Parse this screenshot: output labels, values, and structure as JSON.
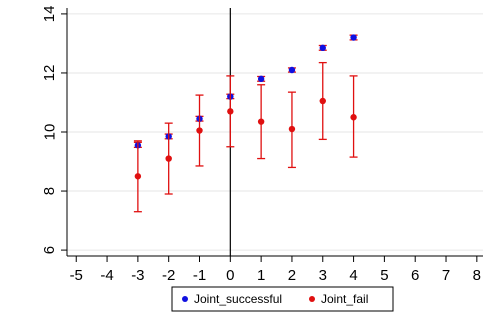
{
  "chart_data": {
    "type": "scatter",
    "title": "",
    "xlabel": "",
    "ylabel": "",
    "xlim": [
      -5.3,
      8.2
    ],
    "ylim": [
      5.8,
      14.2
    ],
    "xticks": [
      -5,
      -4,
      -3,
      -2,
      -1,
      0,
      1,
      2,
      3,
      4,
      5,
      6,
      7,
      8
    ],
    "yticks": [
      6,
      8,
      10,
      12,
      14
    ],
    "grid": "horizontal",
    "vline_x": 0,
    "legend_position": "bottom",
    "series": [
      {
        "name": "Joint_successful",
        "color": "#1010e0",
        "errorbar_color": "#e01010",
        "points": [
          {
            "x": -3,
            "y": 9.55,
            "lo": 9.48,
            "hi": 9.65
          },
          {
            "x": -2,
            "y": 9.85,
            "lo": 9.77,
            "hi": 9.93
          },
          {
            "x": -1,
            "y": 10.45,
            "lo": 10.37,
            "hi": 10.53
          },
          {
            "x": 0,
            "y": 11.2,
            "lo": 11.13,
            "hi": 11.28
          },
          {
            "x": 1,
            "y": 11.8,
            "lo": 11.72,
            "hi": 11.88
          },
          {
            "x": 2,
            "y": 12.1,
            "lo": 12.03,
            "hi": 12.17
          },
          {
            "x": 3,
            "y": 12.85,
            "lo": 12.77,
            "hi": 12.93
          },
          {
            "x": 4,
            "y": 13.2,
            "lo": 13.12,
            "hi": 13.28
          }
        ]
      },
      {
        "name": "Joint_fail",
        "color": "#e01010",
        "errorbar_color": "#e01010",
        "points": [
          {
            "x": -3,
            "y": 8.5,
            "lo": 7.3,
            "hi": 9.7
          },
          {
            "x": -2,
            "y": 9.1,
            "lo": 7.9,
            "hi": 10.3
          },
          {
            "x": -1,
            "y": 10.05,
            "lo": 8.85,
            "hi": 11.25
          },
          {
            "x": 0,
            "y": 10.7,
            "lo": 9.5,
            "hi": 11.9
          },
          {
            "x": 1,
            "y": 10.35,
            "lo": 9.1,
            "hi": 11.6
          },
          {
            "x": 2,
            "y": 10.1,
            "lo": 8.8,
            "hi": 11.35
          },
          {
            "x": 3,
            "y": 11.05,
            "lo": 9.75,
            "hi": 12.35
          },
          {
            "x": 4,
            "y": 10.5,
            "lo": 9.15,
            "hi": 11.9
          }
        ]
      }
    ]
  }
}
